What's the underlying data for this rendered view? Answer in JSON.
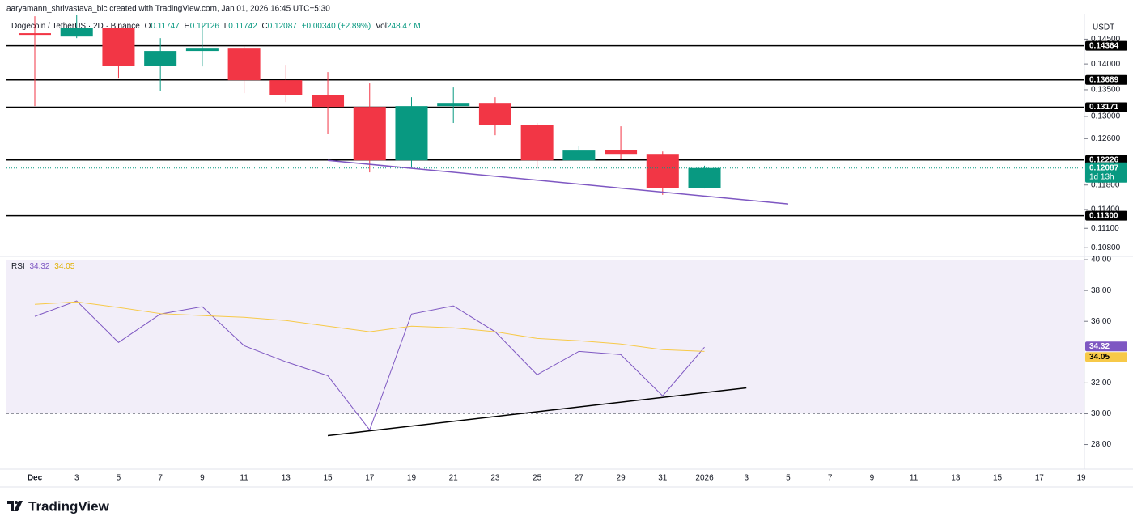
{
  "chart_data": {
    "type": "candlestick",
    "header": "aaryamann_shrivastava_bic created with TradingView.com, Jan 01, 2026 16:45 UTC+5:30",
    "symbol": "Dogecoin / TetherUS · 2D · Binance",
    "ohlc_labels": [
      "O",
      "H",
      "L",
      "C"
    ],
    "change": "+0.00340 (+2.89%)",
    "volume_label": "Vol",
    "volume": "248.47 M",
    "currency": "USDT",
    "countdown": "1d 13h",
    "brand": "TradingView",
    "categories": [
      "Dec",
      "3",
      "5",
      "7",
      "9",
      "11",
      "13",
      "15",
      "17",
      "19",
      "21",
      "23",
      "25",
      "27",
      "29",
      "31",
      "2026",
      "3",
      "5",
      "7",
      "9",
      "11",
      "13",
      "15",
      "17",
      "19"
    ],
    "open": [
      0.14622,
      0.14554,
      0.14739,
      0.13968,
      0.14259,
      0.14323,
      0.13684,
      0.13405,
      0.13177,
      0.12219,
      0.13192,
      0.13252,
      0.12851,
      0.12219,
      0.12403,
      0.12331,
      0.11747,
      null,
      null,
      null,
      null,
      null,
      null,
      null,
      null,
      null
    ],
    "high": [
      0.14977,
      0.15,
      0.14806,
      0.14521,
      0.1484,
      0.14357,
      0.13984,
      0.13841,
      0.13622,
      0.13359,
      0.13544,
      0.13359,
      0.12881,
      0.12474,
      0.12821,
      0.12373,
      0.12126,
      null,
      null,
      null,
      null,
      null,
      null,
      null,
      null,
      null
    ],
    "low": [
      0.13192,
      0.14521,
      0.13714,
      0.13482,
      0.13952,
      0.13436,
      0.13268,
      0.12677,
      0.12013,
      0.12093,
      0.12881,
      0.1266,
      0.12082,
      0.12219,
      0.12249,
      0.11638,
      0.11742,
      null,
      null,
      null,
      null,
      null,
      null,
      null,
      null,
      null
    ],
    "close": [
      0.14588,
      0.14739,
      0.13968,
      0.14259,
      0.14323,
      0.13684,
      0.13405,
      0.13177,
      0.12219,
      0.13192,
      0.13252,
      0.12851,
      0.12219,
      0.12389,
      0.12331,
      0.11747,
      0.12087,
      null,
      null,
      null,
      null,
      null,
      null,
      null,
      null,
      null
    ],
    "up_color": "#089981",
    "down_color": "#f23645",
    "log_scale": true,
    "grid": false,
    "ylim": [
      0.1068,
      0.1503
    ],
    "yticks": [
      {
        "value": 0.145,
        "label": "0.14500"
      },
      {
        "value": 0.14,
        "label": "0.14000"
      },
      {
        "value": 0.135,
        "label": "0.13500"
      },
      {
        "value": 0.13,
        "label": "0.13000"
      },
      {
        "value": 0.126,
        "label": "0.12600"
      },
      {
        "value": 0.118,
        "label": "0.11800"
      },
      {
        "value": 0.114,
        "label": "0.11400"
      },
      {
        "value": 0.111,
        "label": "0.11100"
      },
      {
        "value": 0.108,
        "label": "0.10800"
      }
    ],
    "levels": [
      0.14364,
      0.13689,
      0.13171,
      0.12226,
      {
        "value": 0.113,
        "label": "0.11300"
      }
    ],
    "trendlines": [
      {
        "color": "#7e57c2",
        "points": [
          [
            7,
            0.12219
          ],
          [
            18,
            0.11488
          ]
        ]
      }
    ],
    "indicator": {
      "type": "line",
      "title": "RSI",
      "ylim": [
        26.4,
        40.16
      ],
      "yticks": [
        {
          "value": 40,
          "label": "40.00"
        },
        {
          "value": 38,
          "label": "38.00"
        },
        {
          "value": 36,
          "label": "36.00"
        },
        {
          "value": 32,
          "label": "32.00"
        },
        {
          "value": 30,
          "label": "30.00"
        },
        {
          "value": 28,
          "label": "28.00"
        }
      ],
      "band": [
        30,
        40
      ],
      "band_color": "#7e57c2",
      "series": [
        {
          "color": "#7e57c2",
          "values": [
            36.32,
            37.32,
            34.63,
            36.47,
            36.95,
            34.42,
            33.37,
            32.47,
            28.95,
            36.47,
            37.0,
            35.32,
            32.53,
            34.05,
            33.84,
            31.16,
            34.32,
            null,
            null,
            null,
            null,
            null,
            null,
            null,
            null,
            null
          ]
        },
        {
          "color": "#f7c948",
          "values": [
            37.1,
            37.26,
            36.9,
            36.5,
            36.37,
            36.26,
            36.05,
            35.68,
            35.32,
            35.68,
            35.58,
            35.32,
            34.89,
            34.74,
            34.53,
            34.16,
            34.05,
            null,
            null,
            null,
            null,
            null,
            null,
            null,
            null,
            null
          ]
        }
      ],
      "trendlines": [
        {
          "color": "#000000",
          "points": [
            [
              7,
              28.58
            ],
            [
              17,
              31.68
            ]
          ]
        }
      ]
    }
  }
}
